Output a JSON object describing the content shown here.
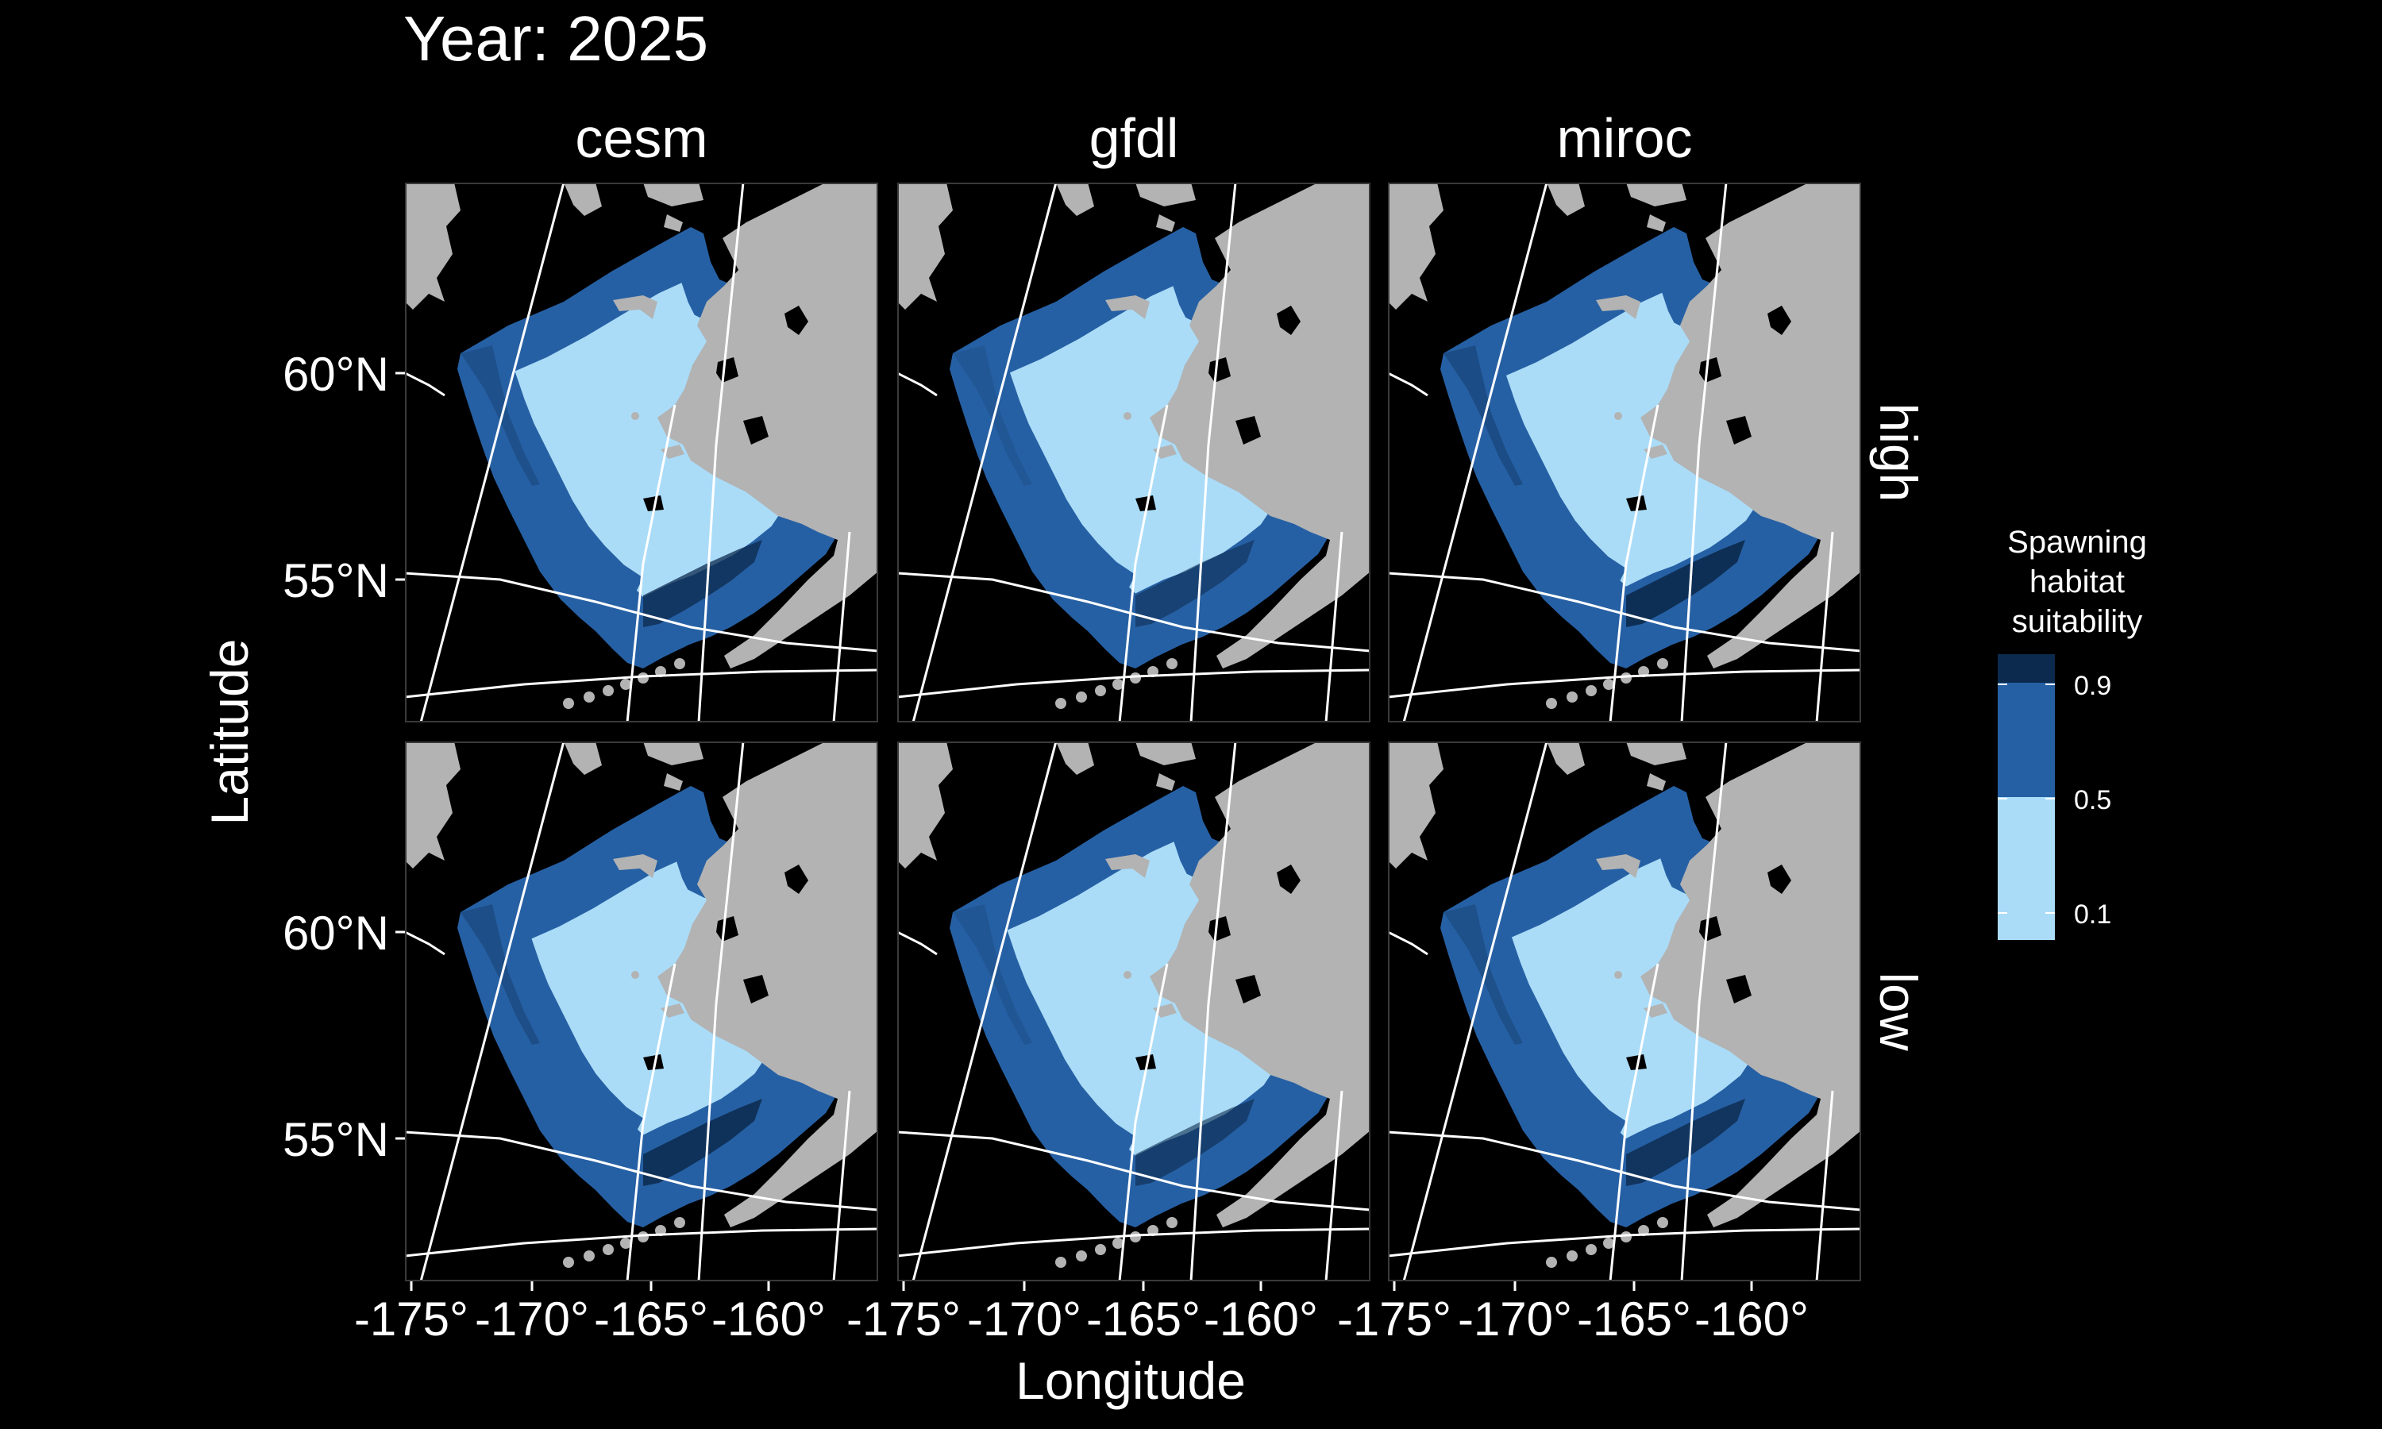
{
  "title": "Year: 2025",
  "xlabel": "Longitude",
  "ylabel": "Latitude",
  "columns": [
    "cesm",
    "gfdl",
    "miroc"
  ],
  "rows": [
    "high",
    "low"
  ],
  "lat_ticks": [
    "60°N",
    "55°N"
  ],
  "lon_ticks": [
    "-175°",
    "-170°",
    "-165°",
    "-160°"
  ],
  "legend": {
    "title_lines": [
      "Spawning",
      "habitat",
      "suitability"
    ],
    "breaks": [
      "0.9",
      "0.5",
      "0.1"
    ],
    "colors": {
      "low": "#aadcf8",
      "mid": "#2660a4",
      "high": "#0c2a4d"
    }
  },
  "colors": {
    "background": "#000000",
    "land": "#b3b3b3",
    "panel_border": "#3a3a3a",
    "graticule": "#ffffff"
  },
  "map_data": {
    "panels": [
      {
        "model": "cesm",
        "scenario": "high",
        "mid_band": 0.55,
        "high_patch": 0.45
      },
      {
        "model": "gfdl",
        "scenario": "high",
        "mid_band": 0.6,
        "high_patch": 0.25
      },
      {
        "model": "miroc",
        "scenario": "high",
        "mid_band": 0.7,
        "high_patch": 0.6
      },
      {
        "model": "cesm",
        "scenario": "low",
        "mid_band": 0.85,
        "high_patch": 0.55
      },
      {
        "model": "gfdl",
        "scenario": "low",
        "mid_band": 0.55,
        "high_patch": 0.3
      },
      {
        "model": "miroc",
        "scenario": "low",
        "mid_band": 0.8,
        "high_patch": 0.5
      }
    ]
  }
}
